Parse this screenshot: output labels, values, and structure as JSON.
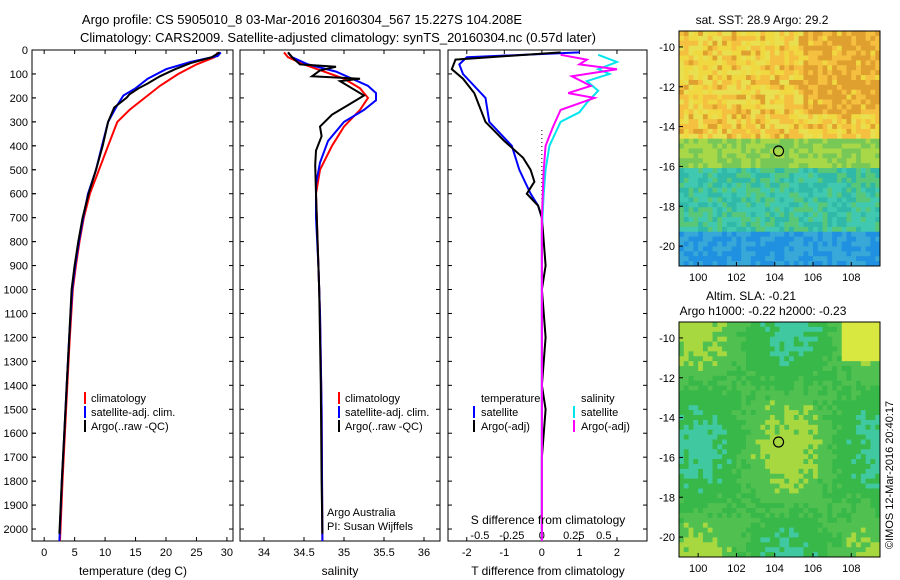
{
  "title": {
    "line1": "Argo profile: CS 5905010_8 03-Mar-2016 20160304_567 15.227S 104.208E",
    "line2": "Climatology: CARS2009. Satellite-adjusted climatology: synTS_20160304.nc (0.57d later)"
  },
  "depth_ticks": [
    "0",
    "100",
    "200",
    "300",
    "400",
    "500",
    "600",
    "700",
    "800",
    "900",
    "1000",
    "1100",
    "1200",
    "1300",
    "1400",
    "1500",
    "1600",
    "1700",
    "1800",
    "1900",
    "2000"
  ],
  "colors": {
    "climatology": "#ff0000",
    "satellite": "#0000ff",
    "argo": "#000000",
    "sat_salinity": "#00e5ee",
    "argo_salinity": "#ff00ff"
  },
  "chart_data": [
    {
      "id": "temperature",
      "type": "line",
      "xlabel": "temperature (deg C)",
      "ylabel": "",
      "xlim": [
        -2,
        31
      ],
      "ylim": [
        2050,
        0
      ],
      "xticks": [
        "0",
        "5",
        "10",
        "15",
        "20",
        "25",
        "30"
      ],
      "legend": [
        "climatology",
        "satellite-adj. clim.",
        "Argo(..raw -QC)"
      ],
      "series": [
        {
          "name": "climatology",
          "color": "#ff0000",
          "points": [
            [
              28.5,
              10
            ],
            [
              28,
              30
            ],
            [
              25,
              60
            ],
            [
              22,
              100
            ],
            [
              19,
              150
            ],
            [
              16.5,
              200
            ],
            [
              14,
              250
            ],
            [
              12,
              300
            ],
            [
              10.5,
              400
            ],
            [
              9,
              500
            ],
            [
              7.5,
              600
            ],
            [
              6.5,
              700
            ],
            [
              5.8,
              800
            ],
            [
              5.2,
              900
            ],
            [
              4.7,
              1000
            ],
            [
              4.2,
              1200
            ],
            [
              3.8,
              1400
            ],
            [
              3.4,
              1600
            ],
            [
              3,
              1800
            ],
            [
              2.6,
              2050
            ]
          ]
        },
        {
          "name": "satellite-adj. clim.",
          "color": "#0000ff",
          "points": [
            [
              29,
              10
            ],
            [
              28.5,
              25
            ],
            [
              24,
              50
            ],
            [
              20,
              80
            ],
            [
              17,
              120
            ],
            [
              15,
              160
            ],
            [
              13,
              190
            ],
            [
              12,
              230
            ],
            [
              10.5,
              300
            ],
            [
              9.5,
              400
            ],
            [
              8.5,
              500
            ],
            [
              7.2,
              600
            ],
            [
              6.4,
              700
            ],
            [
              5.7,
              800
            ],
            [
              5.1,
              900
            ],
            [
              4.6,
              1000
            ],
            [
              4.1,
              1200
            ],
            [
              3.7,
              1400
            ],
            [
              3.3,
              1600
            ],
            [
              2.9,
              1800
            ],
            [
              2.5,
              2050
            ]
          ]
        },
        {
          "name": "Argo(..raw -QC)",
          "color": "#000000",
          "points": [
            [
              28.8,
              10
            ],
            [
              27.5,
              30
            ],
            [
              24,
              55
            ],
            [
              21.5,
              80
            ],
            [
              19,
              110
            ],
            [
              17,
              140
            ],
            [
              15.5,
              160
            ],
            [
              14,
              185
            ],
            [
              13.5,
              200
            ],
            [
              11.5,
              240
            ],
            [
              10.5,
              300
            ],
            [
              9.6,
              400
            ],
            [
              8.5,
              500
            ],
            [
              7.3,
              600
            ],
            [
              6.3,
              700
            ],
            [
              5.6,
              800
            ],
            [
              5,
              900
            ],
            [
              4.5,
              1000
            ],
            [
              4.1,
              1200
            ],
            [
              3.7,
              1400
            ],
            [
              3.3,
              1600
            ],
            [
              2.9,
              1800
            ],
            [
              2.5,
              2020
            ]
          ]
        }
      ]
    },
    {
      "id": "salinity",
      "type": "line",
      "xlabel": "salinity",
      "ylabel": "",
      "xlim": [
        33.7,
        36.2
      ],
      "ylim": [
        2050,
        0
      ],
      "xticks": [
        "34",
        "34.5",
        "35",
        "35.5",
        "36"
      ],
      "legend": [
        "climatology",
        "satellite-adj. clim.",
        "Argo(..raw -QC)"
      ],
      "annotation": [
        "Argo Australia",
        "PI: Susan Wijffels"
      ],
      "series": [
        {
          "name": "climatology",
          "color": "#ff0000",
          "points": [
            [
              34.25,
              10
            ],
            [
              34.3,
              30
            ],
            [
              34.5,
              60
            ],
            [
              34.75,
              90
            ],
            [
              35,
              120
            ],
            [
              35.2,
              160
            ],
            [
              35.3,
              200
            ],
            [
              35.2,
              250
            ],
            [
              35,
              320
            ],
            [
              34.85,
              400
            ],
            [
              34.7,
              500
            ],
            [
              34.65,
              600
            ],
            [
              34.66,
              700
            ],
            [
              34.68,
              900
            ],
            [
              34.7,
              1100
            ],
            [
              34.72,
              1500
            ],
            [
              34.73,
              2050
            ]
          ]
        },
        {
          "name": "satellite-adj. clim.",
          "color": "#0000ff",
          "points": [
            [
              34.3,
              10
            ],
            [
              34.35,
              30
            ],
            [
              34.55,
              60
            ],
            [
              34.9,
              90
            ],
            [
              35.1,
              120
            ],
            [
              35.3,
              150
            ],
            [
              35.4,
              180
            ],
            [
              35.4,
              210
            ],
            [
              35.25,
              250
            ],
            [
              35,
              300
            ],
            [
              34.8,
              380
            ],
            [
              34.7,
              470
            ],
            [
              34.65,
              560
            ],
            [
              34.65,
              700
            ],
            [
              34.68,
              900
            ],
            [
              34.7,
              1100
            ],
            [
              34.72,
              1500
            ],
            [
              34.73,
              2050
            ]
          ]
        },
        {
          "name": "Argo(..raw -QC)",
          "color": "#000000",
          "points": [
            [
              34.3,
              10
            ],
            [
              34.35,
              30
            ],
            [
              34.45,
              60
            ],
            [
              34.9,
              70
            ],
            [
              34.7,
              85
            ],
            [
              34.6,
              110
            ],
            [
              35.2,
              120
            ],
            [
              34.95,
              130
            ],
            [
              35.1,
              160
            ],
            [
              35.25,
              190
            ],
            [
              35.05,
              230
            ],
            [
              34.85,
              270
            ],
            [
              34.7,
              320
            ],
            [
              34.72,
              360
            ],
            [
              34.65,
              420
            ],
            [
              34.64,
              480
            ],
            [
              34.65,
              600
            ],
            [
              34.67,
              800
            ],
            [
              34.69,
              1000
            ],
            [
              34.71,
              1400
            ],
            [
              34.72,
              1800
            ],
            [
              34.73,
              2020
            ]
          ]
        }
      ]
    },
    {
      "id": "difference",
      "type": "line",
      "xlabel": "T difference from climatology",
      "top_label": "S difference from climatology",
      "xlim": [
        -2.5,
        2.8
      ],
      "ylim": [
        2050,
        0
      ],
      "xticks": [
        "-2",
        "-1",
        "0",
        "1",
        "2"
      ],
      "top_ticks": [
        "-0.5",
        "-0.25",
        "0",
        "0.25",
        "0.5"
      ],
      "legend_temperature": {
        "heading": "temperature",
        "items": [
          "satellite",
          "Argo(-adj)"
        ]
      },
      "legend_salinity": {
        "heading": "salinity",
        "items": [
          "satellite",
          "Argo(-adj)"
        ]
      },
      "series": [
        {
          "name": "satellite",
          "color": "#0000ff",
          "points": [
            [
              1,
              10
            ],
            [
              -2,
              30
            ],
            [
              -2.2,
              60
            ],
            [
              -2.1,
              100
            ],
            [
              -1.5,
              200
            ],
            [
              -1.4,
              300
            ],
            [
              -0.8,
              400
            ],
            [
              -0.6,
              500
            ],
            [
              -0.3,
              600
            ],
            [
              -0.1,
              650
            ],
            [
              0,
              700
            ],
            [
              0,
              900
            ],
            [
              0,
              2050
            ]
          ]
        },
        {
          "name": "Argo(-adj)",
          "color": "#000000",
          "points": [
            [
              0.5,
              10
            ],
            [
              -2.3,
              40
            ],
            [
              -2.4,
              80
            ],
            [
              -2.1,
              120
            ],
            [
              -1.8,
              180
            ],
            [
              -1.5,
              300
            ],
            [
              -1,
              380
            ],
            [
              -0.5,
              450
            ],
            [
              -0.3,
              500
            ],
            [
              -0.2,
              550
            ],
            [
              -0.4,
              600
            ],
            [
              -0.1,
              650
            ],
            [
              0,
              700
            ],
            [
              0.1,
              900
            ],
            [
              0,
              1000
            ],
            [
              0.1,
              1200
            ],
            [
              0,
              1400
            ],
            [
              0.1,
              1500
            ],
            [
              0,
              1700
            ],
            [
              0,
              2000
            ]
          ]
        },
        {
          "name": "satellite",
          "color": "#00e5ee",
          "points": [
            [
              1.5,
              20
            ],
            [
              2,
              50
            ],
            [
              1.5,
              80
            ],
            [
              1.8,
              100
            ],
            [
              1.2,
              130
            ],
            [
              1.5,
              170
            ],
            [
              1.2,
              220
            ],
            [
              1,
              260
            ],
            [
              0.5,
              300
            ],
            [
              0.2,
              400
            ],
            [
              0.1,
              500
            ],
            [
              0.05,
              600
            ],
            [
              0,
              750
            ],
            [
              0,
              2050
            ]
          ]
        },
        {
          "name": "Argo(-adj)",
          "color": "#ff00ff",
          "points": [
            [
              0.5,
              20
            ],
            [
              1.2,
              40
            ],
            [
              1,
              60
            ],
            [
              2,
              80
            ],
            [
              0.8,
              110
            ],
            [
              1.3,
              150
            ],
            [
              0.7,
              180
            ],
            [
              1.4,
              200
            ],
            [
              0.5,
              250
            ],
            [
              0.3,
              320
            ],
            [
              0.1,
              400
            ],
            [
              0.05,
              500
            ],
            [
              0,
              700
            ],
            [
              0,
              2050
            ]
          ]
        }
      ]
    },
    {
      "id": "sst_map",
      "type": "heatmap",
      "title": "sat. SST: 28.9  Argo: 29.2",
      "xlim": [
        99,
        109.5
      ],
      "ylim": [
        -21,
        -9.2
      ],
      "xticks": [
        "100",
        "102",
        "104",
        "106",
        "108"
      ],
      "yticks": [
        "-10",
        "-12",
        "-14",
        "-16",
        "-18",
        "-20"
      ],
      "marker": [
        104.2,
        -15.227
      ]
    },
    {
      "id": "sla_map",
      "type": "heatmap",
      "title": "Altim. SLA: -0.21",
      "subtitle": "Argo h1000: -0.22  h2000: -0.23",
      "xlim": [
        99,
        109.5
      ],
      "ylim": [
        -21,
        -9.2
      ],
      "xticks": [
        "100",
        "102",
        "104",
        "106",
        "108"
      ],
      "yticks": [
        "-10",
        "-12",
        "-14",
        "-16",
        "-18",
        "-20"
      ],
      "marker": [
        104.2,
        -15.227
      ]
    }
  ],
  "side_text": "©IMOS 12-Mar-2016 20:40:17"
}
